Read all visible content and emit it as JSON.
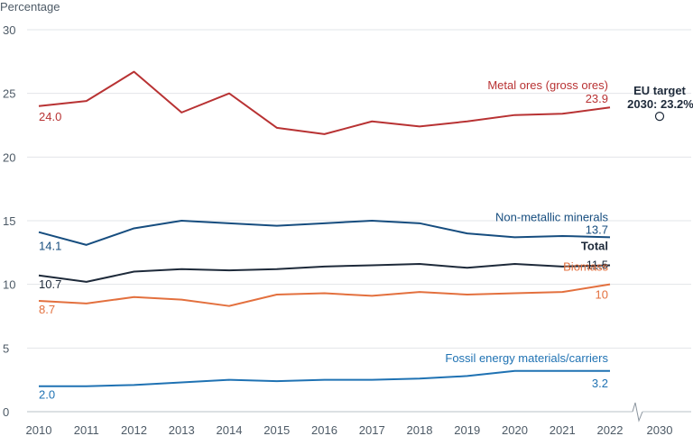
{
  "chart_data": {
    "type": "line",
    "ylabel": "Percentage",
    "ylim": [
      0,
      30
    ],
    "yticks": [
      "0",
      "5",
      "10",
      "15",
      "20",
      "25",
      "30"
    ],
    "x": [
      "2010",
      "2011",
      "2012",
      "2013",
      "2014",
      "2015",
      "2016",
      "2017",
      "2018",
      "2019",
      "2020",
      "2021",
      "2022"
    ],
    "x_extra_tick": "2030",
    "grid": true,
    "series": [
      {
        "name": "Metal ores (gross ores)",
        "color": "#b83233",
        "values": [
          24.0,
          24.4,
          26.7,
          23.5,
          25.0,
          22.3,
          21.8,
          22.8,
          22.4,
          22.8,
          23.3,
          23.4,
          23.9
        ],
        "start_label": "24.0",
        "end_label": "23.9",
        "bold": false
      },
      {
        "name": "Non-metallic minerals",
        "color": "#164d7f",
        "values": [
          14.1,
          13.1,
          14.4,
          15.0,
          14.8,
          14.6,
          14.8,
          15.0,
          14.8,
          14.0,
          13.7,
          13.8,
          13.7
        ],
        "start_label": "14.1",
        "end_label": "13.7",
        "bold": false
      },
      {
        "name": "Total",
        "color": "#1e2a3a",
        "values": [
          10.7,
          10.2,
          11.0,
          11.2,
          11.1,
          11.2,
          11.4,
          11.5,
          11.6,
          11.3,
          11.6,
          11.4,
          11.5
        ],
        "start_label": "10.7",
        "end_label": "11.5",
        "bold": true
      },
      {
        "name": "Biomass",
        "color": "#e3703e",
        "values": [
          8.7,
          8.5,
          9.0,
          8.8,
          8.3,
          9.2,
          9.3,
          9.1,
          9.4,
          9.2,
          9.3,
          9.4,
          10.0
        ],
        "start_label": "8.7",
        "end_label": "10",
        "bold": false
      },
      {
        "name": "Fossil energy materials/carriers",
        "color": "#1f72b3",
        "values": [
          2.0,
          2.0,
          2.1,
          2.3,
          2.5,
          2.4,
          2.5,
          2.5,
          2.6,
          2.8,
          3.2,
          3.2,
          3.2
        ],
        "start_label": "2.0",
        "end_label": "3.2",
        "bold": false
      }
    ],
    "target": {
      "year": "2030",
      "value": 23.2,
      "label_line1": "EU target",
      "label_line2": "2030: 23.2%"
    }
  }
}
